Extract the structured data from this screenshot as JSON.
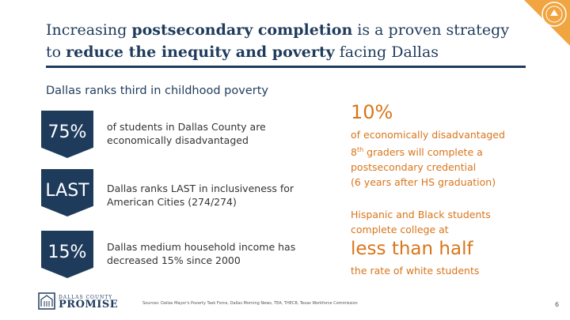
{
  "title": {
    "part1": "Increasing ",
    "bold1": "postsecondary completion",
    "part2": " is a proven strategy to ",
    "bold2": "reduce the inequity and poverty",
    "part3": " facing Dallas"
  },
  "subhead": "Dallas ranks third in childhood poverty",
  "stats": [
    {
      "badge": "75%",
      "text": "of students in Dallas County are economically disadvantaged"
    },
    {
      "badge": "LAST",
      "text": "Dallas ranks LAST in inclusiveness for American Cities (274/274)"
    },
    {
      "badge": "15%",
      "text": "Dallas medium household income has decreased 15% since 2000"
    }
  ],
  "right": {
    "pct": "10%",
    "line1": "of economically disadvantaged",
    "grade": "8",
    "grade_sup": "th",
    "line2_rest": " graders will complete a",
    "line3": "postsecondary credential",
    "line4": "(6 years after HS graduation)",
    "hisp1": "Hispanic and Black students",
    "hisp2": "complete college at",
    "less": "less than half",
    "rate": "the rate of white students"
  },
  "logo": {
    "small": "DALLAS COUNTY",
    "big": "PROMISE"
  },
  "sources": "Sources: Dallas Mayor's Poverty Task Force, Dallas Morning News, TEA, THECB, Texas Workforce Commission",
  "page_number": "6",
  "colors": {
    "navy": "#1f3b5c",
    "orange": "#d9751b"
  },
  "icons": {
    "corner_seal": "seal-icon",
    "logo_mark": "building-icon"
  }
}
